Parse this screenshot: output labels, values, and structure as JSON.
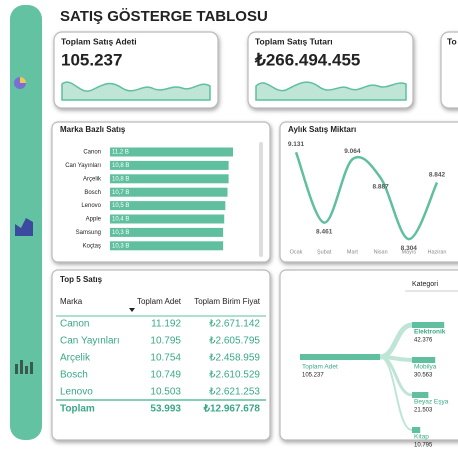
{
  "header": {
    "title": "SATIŞ GÖSTERGE TABLOSU"
  },
  "kpis": [
    {
      "title": "Toplam Satış Adeti",
      "value": "105.237"
    },
    {
      "title": "Toplam Satış Tutarı",
      "value": "₺266.494.455"
    },
    {
      "title": "To"
    }
  ],
  "brand_chart": {
    "type": "bar",
    "title": "Marka Bazlı Satış",
    "categories": [
      "Canon",
      "Can Yayınları",
      "Arçelik",
      "Bosch",
      "Lenovo",
      "Apple",
      "Samsung",
      "Koçtaş"
    ],
    "values": [
      11.2,
      10.8,
      10.8,
      10.7,
      10.5,
      10.4,
      10.3,
      10.3
    ],
    "value_labels": [
      "11,2 B",
      "10,8 B",
      "10,8 B",
      "10,7 B",
      "10,5 B",
      "10,4 B",
      "10,3 B",
      "10,3 B"
    ],
    "xlim": [
      0,
      11.2
    ],
    "color": "#5fbf9f"
  },
  "monthly_chart": {
    "type": "line",
    "title": "Aylık Satış Miktarı",
    "categories": [
      "Ocak",
      "Şubat",
      "Mart",
      "Nisan",
      "Mayıs",
      "Haziran"
    ],
    "values": [
      9131,
      8461,
      9064,
      8887,
      8304,
      8842
    ],
    "value_labels": [
      "9.131",
      "8.461",
      "9.064",
      "8.887",
      "8.304",
      "8.842"
    ],
    "ylim": [
      8200,
      9200
    ],
    "color": "#5fbf9f"
  },
  "table": {
    "title": "Top 5 Satış",
    "headers": [
      "Marka",
      "Toplam Adet",
      "Toplam Birim Fiyat"
    ],
    "rows": [
      [
        "Canon",
        "11.192",
        "₺2.671.142"
      ],
      [
        "Can Yayınları",
        "10.795",
        "₺2.605.795"
      ],
      [
        "Arçelik",
        "10.754",
        "₺2.458.959"
      ],
      [
        "Bosch",
        "10.749",
        "₺2.610.529"
      ],
      [
        "Lenovo",
        "10.503",
        "₺2.621.253"
      ]
    ],
    "total": [
      "Toplam",
      "53.993",
      "₺12.967.678"
    ]
  },
  "tree": {
    "level_header": "Kategori",
    "root": {
      "label": "Toplam Adet",
      "value": 105237,
      "value_label": "105.237"
    },
    "children": [
      {
        "label": "Elektronik",
        "value": 42376,
        "value_label": "42.376"
      },
      {
        "label": "Mobilya",
        "value": 30563,
        "value_label": "30.563"
      },
      {
        "label": "Beyaz Eşya",
        "value": 21503,
        "value_label": "21.503"
      },
      {
        "label": "Kitap",
        "value": 10795,
        "value_label": "10.795"
      }
    ]
  }
}
